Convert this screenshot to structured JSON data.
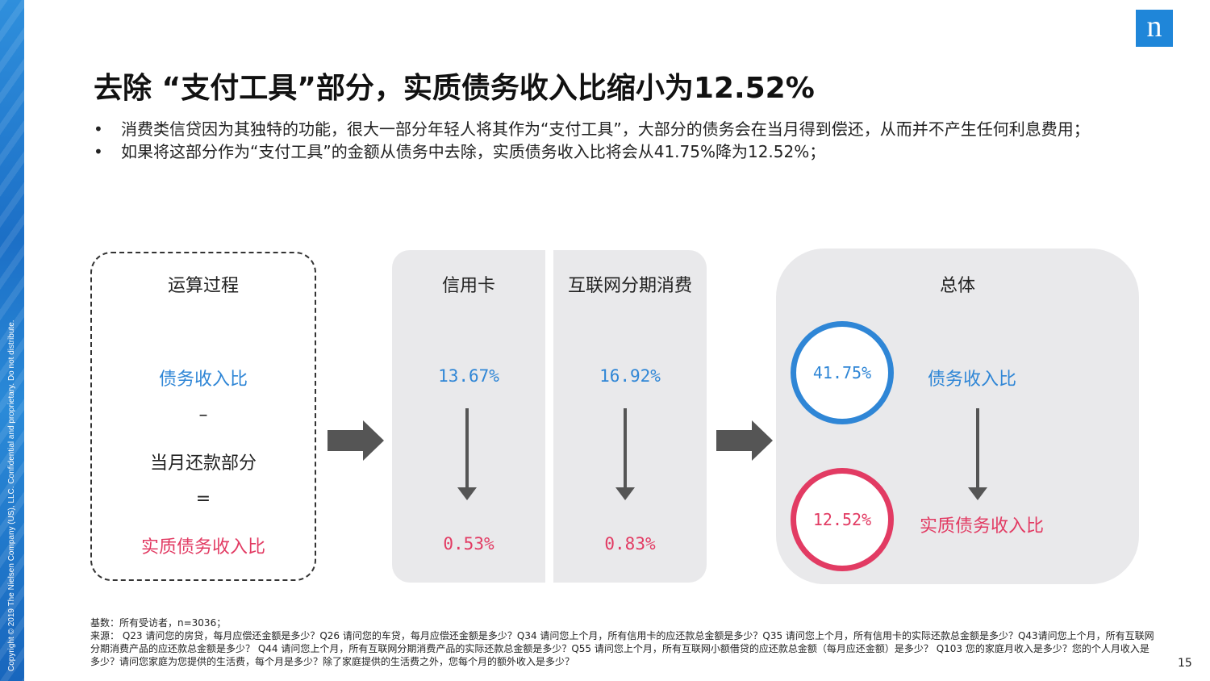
{
  "sidebar": {
    "copyright": "Copyright © 2019 The Nielsen Company (US), LLC. Confidential and proprietary. Do not distribute."
  },
  "logo": {
    "letter": "n"
  },
  "title": "去除 “支付工具”部分，实质债务收入比缩小为12.52%",
  "bullets": [
    "消费类信贷因为其独特的功能，很大一部分年轻人将其作为“支付工具”，大部分的债务会在当月得到偿还，从而并不产生任何利息费用；",
    "如果将这部分作为“支付工具”的金额从债务中去除，实质债务收入比将会从41.75%降为12.52%；"
  ],
  "process": {
    "heading": "运算过程",
    "line1": "债务收入比",
    "minus": "–",
    "line2": "当月还款部分",
    "equals": "=",
    "line3": "实质债务收入比"
  },
  "credit_card": {
    "heading": "信用卡",
    "ratio": "13.67%",
    "real": "0.53%"
  },
  "internet": {
    "heading": "互联网分期消费",
    "ratio": "16.92%",
    "real": "0.83%"
  },
  "total": {
    "heading": "总体",
    "ratio": "41.75%",
    "ratio_label": "债务收入比",
    "real": "12.52%",
    "real_label": "实质债务收入比"
  },
  "footnote": {
    "base": "基数：所有受访者，n=3036；",
    "source": "来源： Q23 请问您的房贷，每月应偿还金额是多少？Q26 请问您的车贷，每月应偿还金额是多少？Q34 请问您上个月，所有信用卡的应还款总金额是多少？Q35 请问您上个月，所有信用卡的实际还款总金额是多少？Q43请问您上个月，所有互联网分期消费产品的应还款总金额是多少？ Q44 请问您上个月，所有互联网分期消费产品的实际还款总金额是多少？Q55 请问您上个月，所有互联网小额借贷的应还款总金额（每月应还金额）是多少？ Q103 您的家庭月收入是多少？您的个人月收入是多少？请问您家庭为您提供的生活费，每个月是多少？除了家庭提供的生活费之外，您每个月的额外收入是多少？"
  },
  "page_number": "15",
  "colors": {
    "blue": "#2f86d6",
    "red": "#e23b63",
    "panel_gray": "#e9e9eb",
    "arrow": "#555555"
  }
}
